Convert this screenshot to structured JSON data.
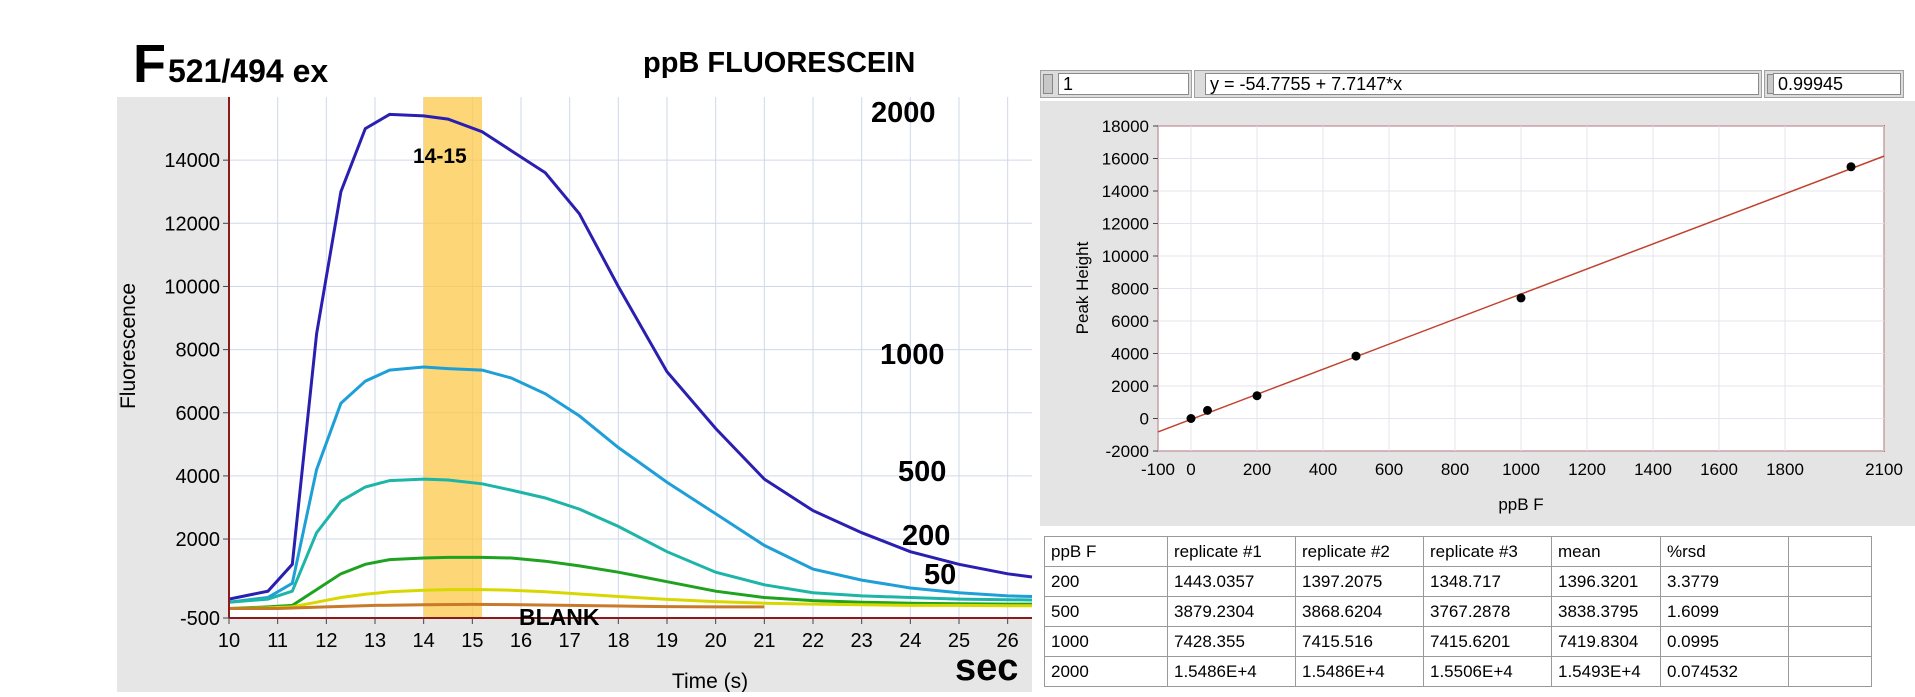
{
  "left_chart": {
    "title_big": "F",
    "title_rest": "521/494 ex",
    "subtitle": "ppB FLUORESCEIN",
    "highlight_label": "14-15",
    "blank_label": "BLANK",
    "sec_label": "sec"
  },
  "right_panel": {
    "controls": {
      "index": "1",
      "equation": "y = -54.7755 + 7.7147*x",
      "r_value": "0.99945"
    },
    "table": {
      "headers": [
        "ppB F",
        "replicate #1",
        "replicate #2",
        "replicate #3",
        "mean",
        "%rsd",
        ""
      ],
      "rows": [
        [
          "200",
          "1443.0357",
          "1397.2075",
          "1348.717",
          "1396.3201",
          "3.3779",
          ""
        ],
        [
          "500",
          "3879.2304",
          "3868.6204",
          "3767.2878",
          "3838.3795",
          "1.6099",
          ""
        ],
        [
          "1000",
          "7428.355",
          "7415.516",
          "7415.6201",
          "7419.8304",
          "0.0995",
          ""
        ],
        [
          "2000",
          "1.5486E+4",
          "1.5486E+4",
          "1.5506E+4",
          "1.5493E+4",
          "0.074532",
          ""
        ]
      ]
    }
  },
  "chart_data": [
    {
      "type": "line",
      "xlabel": "Time (s)",
      "ylabel": "Fluorescence",
      "xlim": [
        10,
        26.5
      ],
      "ylim": [
        -500,
        16000
      ],
      "x_ticks": [
        10,
        11,
        12,
        13,
        14,
        15,
        16,
        17,
        18,
        19,
        20,
        21,
        22,
        23,
        24,
        25,
        26
      ],
      "y_ticks": [
        -500,
        2000,
        4000,
        6000,
        8000,
        10000,
        12000,
        14000
      ],
      "y_tick_labels": [
        "-500",
        "2000",
        "4000",
        "6000",
        "8000",
        "10000",
        "12000",
        "14000"
      ],
      "grid": true,
      "highlight_band": [
        14,
        15.2
      ],
      "series": [
        {
          "name": "2000",
          "color": "#2a1fb0",
          "x": [
            10,
            10.8,
            11.3,
            11.8,
            12.3,
            12.8,
            13.3,
            14,
            14.5,
            15.2,
            15.8,
            16.5,
            17.2,
            18,
            19,
            20,
            21,
            22,
            23,
            24,
            25,
            26,
            26.5
          ],
          "y": [
            100,
            350,
            1200,
            8500,
            13000,
            15000,
            15450,
            15400,
            15300,
            14900,
            14300,
            13600,
            12300,
            10000,
            7300,
            5500,
            3900,
            2900,
            2200,
            1600,
            1200,
            900,
            800
          ]
        },
        {
          "name": "1000",
          "color": "#1e9fd8",
          "x": [
            10,
            10.8,
            11.3,
            11.8,
            12.3,
            12.8,
            13.3,
            14,
            14.5,
            15.2,
            15.8,
            16.5,
            17.2,
            18,
            19,
            20,
            21,
            22,
            23,
            24,
            25,
            26,
            26.5
          ],
          "y": [
            0,
            150,
            600,
            4200,
            6300,
            7000,
            7350,
            7450,
            7400,
            7350,
            7100,
            6600,
            5900,
            4900,
            3800,
            2800,
            1800,
            1050,
            700,
            450,
            300,
            200,
            180
          ]
        },
        {
          "name": "500",
          "color": "#1cb5a8",
          "x": [
            10,
            10.8,
            11.3,
            11.8,
            12.3,
            12.8,
            13.3,
            14,
            14.5,
            15.2,
            15.8,
            16.5,
            17.2,
            18,
            19,
            20,
            21,
            22,
            23,
            24,
            25,
            26,
            26.5
          ],
          "y": [
            0,
            100,
            350,
            2200,
            3200,
            3650,
            3850,
            3900,
            3870,
            3750,
            3550,
            3300,
            2950,
            2400,
            1600,
            950,
            550,
            300,
            200,
            150,
            100,
            80,
            70
          ]
        },
        {
          "name": "200",
          "color": "#1fa21f",
          "x": [
            10,
            10.8,
            11.3,
            11.8,
            12.3,
            12.8,
            13.3,
            14,
            14.5,
            15.2,
            15.8,
            16.5,
            17.2,
            18,
            19,
            20,
            21,
            22,
            23,
            24,
            25,
            26,
            26.5
          ],
          "y": [
            -200,
            -150,
            -100,
            400,
            900,
            1200,
            1350,
            1400,
            1420,
            1420,
            1400,
            1300,
            1150,
            950,
            650,
            350,
            150,
            50,
            0,
            -30,
            -50,
            -60,
            -60
          ]
        },
        {
          "name": "50",
          "color": "#d8d800",
          "x": [
            10,
            10.8,
            11.3,
            11.8,
            12.3,
            12.8,
            13.3,
            14,
            14.5,
            15.2,
            15.8,
            16.5,
            17.2,
            18,
            19,
            20,
            21,
            22,
            23,
            24,
            25,
            26,
            26.5
          ],
          "y": [
            -200,
            -180,
            -150,
            0,
            150,
            250,
            330,
            380,
            400,
            400,
            380,
            330,
            260,
            180,
            90,
            20,
            -30,
            -60,
            -80,
            -100,
            -100,
            -110,
            -110
          ]
        },
        {
          "name": "BLANK",
          "color": "#c87a2a",
          "x": [
            10,
            11,
            12,
            13,
            14,
            15,
            16,
            17,
            18,
            19,
            20,
            21
          ],
          "y": [
            -200,
            -200,
            -150,
            -100,
            -80,
            -70,
            -80,
            -100,
            -120,
            -140,
            -150,
            -150
          ]
        }
      ],
      "annotations": [
        "2000",
        "1000",
        "500",
        "200",
        "50"
      ]
    },
    {
      "type": "scatter",
      "xlabel": "ppB F",
      "ylabel": "Peak Height",
      "xlim": [
        -100,
        2100
      ],
      "ylim": [
        -2000,
        18000
      ],
      "x_ticks": [
        -100,
        0,
        200,
        400,
        600,
        800,
        1000,
        1200,
        1400,
        1600,
        1800,
        2100
      ],
      "y_ticks": [
        -2000,
        0,
        2000,
        4000,
        6000,
        8000,
        10000,
        12000,
        14000,
        16000,
        18000
      ],
      "grid": true,
      "points": {
        "x": [
          0,
          50,
          200,
          500,
          1000,
          2000
        ],
        "y": [
          0,
          500,
          1400,
          3840,
          7420,
          15490
        ]
      },
      "fit": {
        "intercept": -54.7755,
        "slope": 7.7147,
        "color": "#c0432e"
      }
    }
  ]
}
